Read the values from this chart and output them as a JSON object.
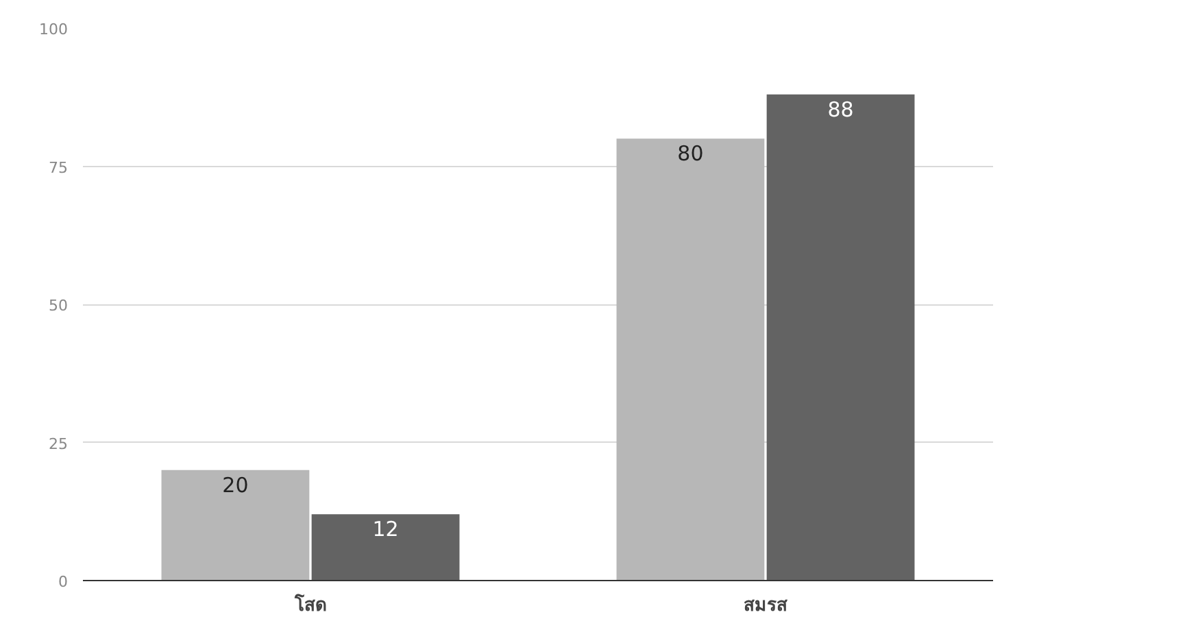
{
  "chart_data": {
    "type": "bar",
    "categories": [
      "โสด",
      "สมรส"
    ],
    "series": [
      {
        "color": "#b7b7b7",
        "values": [
          20,
          80
        ]
      },
      {
        "color": "#636363",
        "values": [
          12,
          88
        ]
      }
    ],
    "ylim": [
      0,
      100
    ],
    "yticks": [
      0,
      25,
      50,
      75,
      100
    ],
    "grid": "y",
    "data_labels": true
  }
}
